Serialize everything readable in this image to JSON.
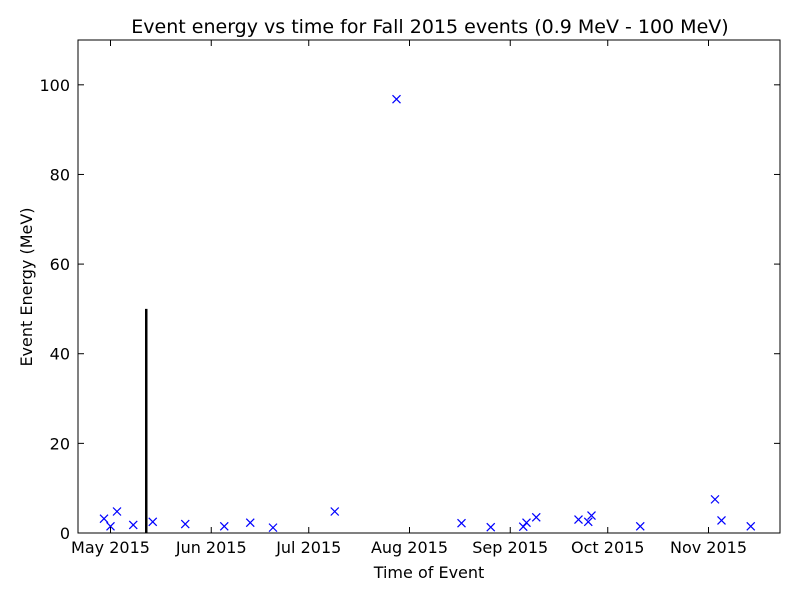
{
  "chart_data": {
    "type": "scatter",
    "title": "Event energy vs time for Fall 2015 events (0.9 MeV - 100 MeV)",
    "xlabel": "Time of Event",
    "ylabel": "Event Energy (MeV)",
    "xlim": [
      "2015-04-21",
      "2015-11-23"
    ],
    "ylim": [
      0,
      110
    ],
    "x_ticks": [
      {
        "date": "2015-05-01",
        "label": "May 2015"
      },
      {
        "date": "2015-06-01",
        "label": "Jun 2015"
      },
      {
        "date": "2015-07-01",
        "label": "Jul 2015"
      },
      {
        "date": "2015-08-01",
        "label": "Aug 2015"
      },
      {
        "date": "2015-09-01",
        "label": "Sep 2015"
      },
      {
        "date": "2015-10-01",
        "label": "Oct 2015"
      },
      {
        "date": "2015-11-01",
        "label": "Nov 2015"
      }
    ],
    "y_ticks": [
      0,
      20,
      40,
      60,
      80,
      100
    ],
    "grid": false,
    "marker": "x",
    "marker_color": "#0000ff",
    "points": [
      {
        "x": "2015-04-29",
        "y": 3.2
      },
      {
        "x": "2015-05-01",
        "y": 1.5
      },
      {
        "x": "2015-05-03",
        "y": 4.8
      },
      {
        "x": "2015-05-08",
        "y": 1.8
      },
      {
        "x": "2015-05-14",
        "y": 2.5
      },
      {
        "x": "2015-05-24",
        "y": 2.0
      },
      {
        "x": "2015-06-05",
        "y": 1.5
      },
      {
        "x": "2015-06-13",
        "y": 2.3
      },
      {
        "x": "2015-06-20",
        "y": 1.2
      },
      {
        "x": "2015-07-09",
        "y": 4.8
      },
      {
        "x": "2015-07-28",
        "y": 96.8
      },
      {
        "x": "2015-08-17",
        "y": 2.2
      },
      {
        "x": "2015-08-26",
        "y": 1.3
      },
      {
        "x": "2015-09-05",
        "y": 1.4
      },
      {
        "x": "2015-09-06",
        "y": 2.3
      },
      {
        "x": "2015-09-09",
        "y": 3.5
      },
      {
        "x": "2015-09-22",
        "y": 3.0
      },
      {
        "x": "2015-09-25",
        "y": 2.5
      },
      {
        "x": "2015-09-26",
        "y": 3.9
      },
      {
        "x": "2015-10-11",
        "y": 1.5
      },
      {
        "x": "2015-11-03",
        "y": 7.5
      },
      {
        "x": "2015-11-05",
        "y": 2.8
      },
      {
        "x": "2015-11-14",
        "y": 1.5
      }
    ],
    "marker_line": {
      "x": "2015-05-12",
      "y": [
        0,
        50
      ],
      "color": "#000000"
    }
  }
}
